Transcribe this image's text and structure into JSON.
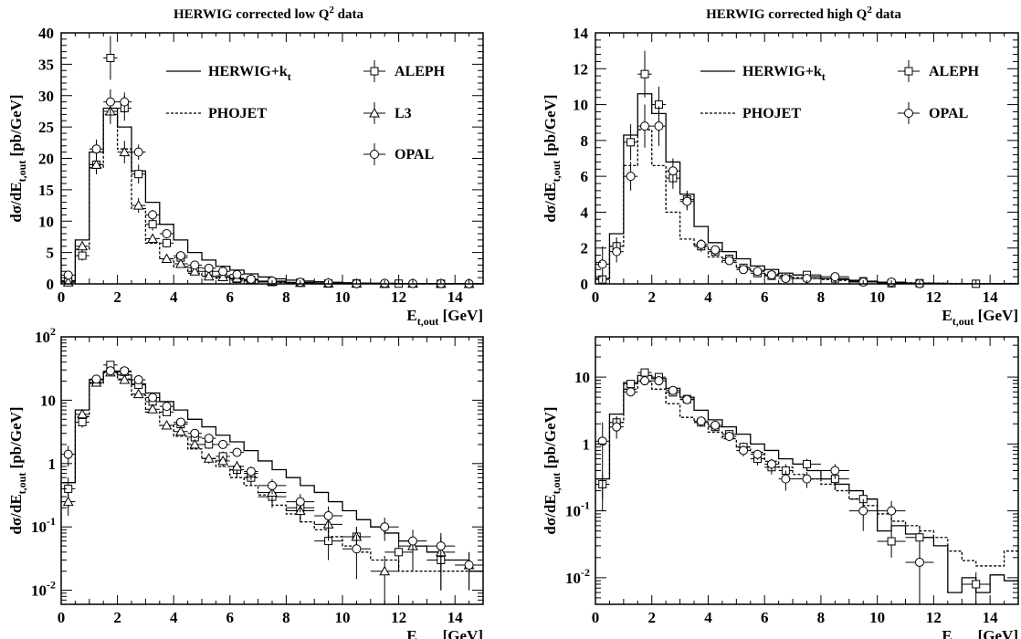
{
  "figure_titles": [
    "HERWIG corrected low Q",
    "HERWIG corrected high Q"
  ],
  "axis_labels": {
    "y_main": "dσ/dE",
    "y_sub": "t,out",
    "y_units": "[pb/GeV]",
    "x_main": "E",
    "x_sub": "t,out",
    "x_units": "[GeV]"
  },
  "legend_labels": {
    "herwig": "HERWIG+k",
    "herwig_sub": "t",
    "phojet": "PHOJET",
    "aleph": "ALEPH",
    "l3": "L3",
    "opal": "OPAL"
  },
  "chart_data": [
    {
      "type": "line",
      "title": "HERWIG corrected low Q² data",
      "xlabel": "E_t,out [GeV]",
      "ylabel": "dσ/dE_t,out [pb/GeV]",
      "xlim": [
        0,
        15
      ],
      "ylim": [
        0,
        40
      ],
      "yscale": "linear",
      "xticks": [
        "0",
        "2",
        "4",
        "6",
        "8",
        "10",
        "12",
        "14"
      ],
      "yticks": [
        "0",
        "5",
        "10",
        "15",
        "20",
        "25",
        "30",
        "35",
        "40"
      ],
      "legend": "top-right",
      "bin_edges": [
        0,
        0.5,
        1,
        1.5,
        2,
        2.5,
        3,
        3.5,
        4,
        4.5,
        5,
        5.5,
        6,
        6.5,
        7,
        7.5,
        8,
        8.5,
        9,
        9.5,
        10,
        10.5,
        11,
        11.5,
        12,
        12.5,
        13,
        13.5,
        14,
        14.5,
        15
      ],
      "series": [
        {
          "name": "HERWIG+kt",
          "kind": "hist-solid",
          "values": [
            0.5,
            7,
            21,
            28,
            25,
            18,
            13,
            9.5,
            7,
            5,
            3.8,
            2.8,
            2.2,
            1.6,
            1.1,
            0.8,
            0.6,
            0.45,
            0.35,
            0.25,
            0.18,
            0.13,
            0.1,
            0.08,
            0.06,
            0.05,
            0.04,
            0.03,
            0.03,
            0.02
          ]
        },
        {
          "name": "PHOJET",
          "kind": "hist-dashed",
          "values": [
            0.5,
            5.5,
            18.5,
            27,
            21.5,
            12,
            6.5,
            4,
            2.7,
            1.7,
            1.2,
            0.9,
            0.6,
            0.45,
            0.32,
            0.22,
            0.16,
            0.12,
            0.09,
            0.07,
            0.05,
            0.04,
            0.03,
            0.03,
            0.02,
            0.02,
            0.02,
            0.02,
            0.02,
            0.02
          ]
        },
        {
          "name": "ALEPH",
          "kind": "points-square",
          "x": [
            0.25,
            0.75,
            1.25,
            1.75,
            2.25,
            2.75,
            3.25,
            3.75,
            4.25,
            4.75,
            5.25,
            5.75,
            6.25,
            6.75,
            7.5,
            8.5,
            9.5,
            10.5,
            12.0,
            13.5
          ],
          "y": [
            0.4,
            4.5,
            19,
            36,
            28,
            17.5,
            9.5,
            6.5,
            4.2,
            2.6,
            2.0,
            1.3,
            0.8,
            0.6,
            0.3,
            0.2,
            0.06,
            0.07,
            0.04,
            0.03
          ],
          "yerr": [
            0.2,
            0.8,
            1.5,
            3.5,
            2,
            1.5,
            1,
            0.7,
            0.5,
            0.4,
            0.3,
            0.25,
            0.2,
            0.15,
            0.1,
            0.07,
            0.03,
            0.03,
            0.02,
            0.02
          ]
        },
        {
          "name": "L3",
          "kind": "points-triangle",
          "x": [
            0.25,
            0.75,
            1.25,
            1.75,
            2.25,
            2.75,
            3.25,
            3.75,
            4.25,
            4.75,
            5.25,
            5.75,
            6.25,
            6.75,
            7.5,
            8.5,
            9.5,
            10.5,
            11.5,
            12.5,
            13.5,
            14.5
          ],
          "y": [
            0.25,
            6,
            19,
            27.5,
            21,
            12.5,
            7.2,
            4,
            3.2,
            2,
            1.2,
            1.1,
            0.9,
            0.7,
            0.35,
            0.18,
            0.11,
            0.07,
            0.02,
            0.05,
            0.04,
            0.025
          ],
          "yerr": [
            0.1,
            0.8,
            1.5,
            2,
            1.8,
            1.2,
            0.8,
            0.5,
            0.4,
            0.3,
            0.2,
            0.2,
            0.2,
            0.15,
            0.1,
            0.06,
            0.05,
            0.03,
            0.015,
            0.03,
            0.03,
            0.015
          ]
        },
        {
          "name": "OPAL",
          "kind": "points-circle",
          "x": [
            0.25,
            1.25,
            1.75,
            2.25,
            2.75,
            3.25,
            3.75,
            4.25,
            4.75,
            5.25,
            5.75,
            6.25,
            6.75,
            7.5,
            8.5,
            9.5,
            10.5,
            11.5,
            12.5,
            13.5,
            14.5
          ],
          "y": [
            1.4,
            21.5,
            29,
            29,
            21,
            11,
            8,
            4.5,
            3,
            2.5,
            2,
            1.5,
            0.75,
            0.45,
            0.25,
            0.15,
            0.045,
            0.1,
            0.06,
            0.05,
            0.025
          ],
          "yerr": [
            0.5,
            1.5,
            2,
            1.5,
            1.2,
            0.8,
            0.6,
            0.4,
            0.3,
            0.3,
            0.25,
            0.2,
            0.15,
            0.12,
            0.08,
            0.06,
            0.03,
            0.04,
            0.03,
            0.03,
            0.015
          ]
        }
      ]
    },
    {
      "type": "line",
      "title": "HERWIG corrected high Q² data",
      "xlabel": "E_t,out [GeV]",
      "ylabel": "dσ/dE_t,out [pb/GeV]",
      "xlim": [
        0,
        15
      ],
      "ylim": [
        0,
        14
      ],
      "yscale": "linear",
      "xticks": [
        "0",
        "2",
        "4",
        "6",
        "8",
        "10",
        "12",
        "14"
      ],
      "yticks": [
        "0",
        "2",
        "4",
        "6",
        "8",
        "10",
        "12",
        "14"
      ],
      "legend": "top-right",
      "bin_edges": [
        0,
        0.5,
        1,
        1.5,
        2,
        2.5,
        3,
        3.5,
        4,
        4.5,
        5,
        5.5,
        6,
        6.5,
        7,
        7.5,
        8,
        8.5,
        9,
        9.5,
        10,
        10.5,
        11,
        11.5,
        12,
        12.5,
        13,
        13.5,
        14,
        14.5,
        15
      ],
      "series": [
        {
          "name": "HERWIG+kt",
          "kind": "hist-solid",
          "values": [
            0.3,
            2.8,
            8.3,
            10.6,
            9.5,
            6.8,
            5,
            3.2,
            2.3,
            1.8,
            1.4,
            1,
            0.8,
            0.6,
            0.5,
            0.4,
            0.3,
            0.25,
            0.2,
            0.15,
            0.05,
            0.06,
            0.045,
            0.04,
            0.03,
            0.006,
            0.01,
            0.006,
            0.011,
            0.009
          ]
        },
        {
          "name": "PHOJET",
          "kind": "hist-dashed",
          "values": [
            0.3,
            2.1,
            6.6,
            8.6,
            6.6,
            4,
            2.5,
            2.1,
            1.5,
            1.2,
            0.9,
            0.75,
            0.55,
            0.45,
            0.35,
            0.3,
            0.25,
            0.2,
            0.15,
            0.12,
            0.09,
            0.07,
            0.06,
            0.05,
            0.04,
            0.025,
            0.018,
            0.015,
            0.015,
            0.025
          ]
        },
        {
          "name": "ALEPH",
          "kind": "points-square",
          "x": [
            0.25,
            0.75,
            1.25,
            1.75,
            2.25,
            2.75,
            3.25,
            3.75,
            4.25,
            4.75,
            5.25,
            5.75,
            6.25,
            6.75,
            7.5,
            8.5,
            9.5,
            10.5,
            11.5,
            13.5
          ],
          "y": [
            0.25,
            2.1,
            7.9,
            11.7,
            10,
            5.9,
            4.7,
            2.1,
            1.8,
            1.4,
            0.9,
            0.6,
            0.45,
            0.4,
            0.5,
            0.3,
            0.15,
            0.035,
            0.04,
            0.008
          ],
          "yerr": [
            0.1,
            0.5,
            1,
            1.3,
            1,
            0.6,
            0.5,
            0.3,
            0.25,
            0.2,
            0.15,
            0.12,
            0.1,
            0.1,
            0.1,
            0.08,
            0.05,
            0.015,
            0.02,
            0.004
          ]
        },
        {
          "name": "OPAL",
          "kind": "points-circle",
          "x": [
            0.25,
            0.75,
            1.25,
            1.75,
            2.25,
            2.75,
            3.25,
            3.75,
            4.25,
            4.75,
            5.25,
            5.75,
            6.25,
            6.75,
            7.5,
            8.5,
            9.5,
            10.5,
            11.5
          ],
          "y": [
            1.1,
            1.8,
            6,
            8.8,
            8.8,
            6.3,
            4.6,
            2.2,
            1.9,
            1.3,
            0.8,
            0.7,
            0.5,
            0.3,
            0.3,
            0.4,
            0.1,
            0.1,
            0.017
          ],
          "yerr": [
            1,
            0.6,
            0.8,
            1.2,
            1.1,
            0.7,
            0.5,
            0.3,
            0.25,
            0.2,
            0.15,
            0.12,
            0.1,
            0.1,
            0.08,
            0.1,
            0.05,
            0.04,
            0.015
          ]
        }
      ]
    },
    {
      "type": "line",
      "title": "",
      "xlabel": "E_t,out [GeV]",
      "ylabel": "dσ/dE_t,out [pb/GeV]",
      "xlim": [
        0,
        15
      ],
      "ylim": [
        0.006,
        100
      ],
      "yscale": "log",
      "xticks": [
        "0",
        "2",
        "4",
        "6",
        "8",
        "10",
        "12",
        "14"
      ],
      "legend": "none",
      "same_data_as": 0
    },
    {
      "type": "line",
      "title": "",
      "xlabel": "E_t,out [GeV]",
      "ylabel": "dσ/dE_t,out [pb/GeV]",
      "xlim": [
        0,
        15
      ],
      "ylim": [
        0.004,
        40
      ],
      "yscale": "log",
      "xticks": [
        "0",
        "2",
        "4",
        "6",
        "8",
        "10",
        "12",
        "14"
      ],
      "legend": "none",
      "same_data_as": 1
    }
  ]
}
